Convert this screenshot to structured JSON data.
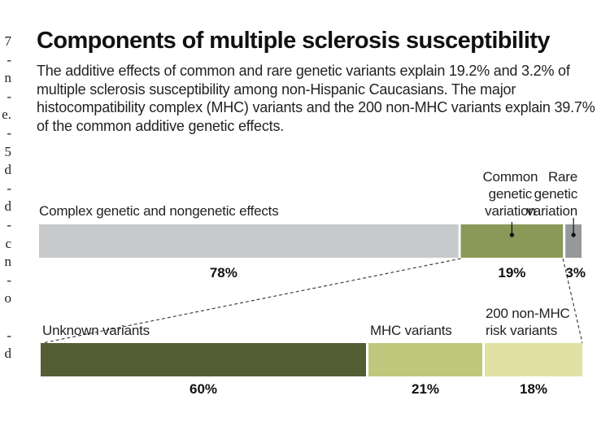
{
  "title": "Components of multiple sclerosis susceptibility",
  "subtitle": "The additive effects of common and rare genetic variants explain 19.2% and 3.2% of multiple sclerosis susceptibility among non-Hispanic Caucasians. The major histocompatibility complex (MHC) variants and the 200 non-MHC variants explain 39.7% of the common additive genetic effects.",
  "margin_fragments": [
    "7",
    "-",
    "n",
    "-",
    "e.",
    "-",
    "5",
    "d",
    "-",
    "d",
    "-",
    "c",
    "n",
    "-",
    "o",
    "",
    "-",
    "d"
  ],
  "chart_data": [
    {
      "type": "bar",
      "orientation": "horizontal",
      "stacked": true,
      "categories": [
        "Complex genetic and nongenetic effects",
        "Common genetic variation",
        "Rare genetic variation"
      ],
      "values": [
        78,
        19,
        3
      ],
      "value_labels": [
        "78%",
        "19%",
        "3%"
      ],
      "label_lines": [
        [
          "Complex genetic and nongenetic effects"
        ],
        [
          "Common",
          "genetic",
          "variation"
        ],
        [
          "Rare",
          "genetic",
          "variation"
        ]
      ],
      "colors": [
        "#c8c9cb",
        "#8a9858",
        "#97989b"
      ]
    },
    {
      "type": "bar",
      "orientation": "horizontal",
      "stacked": true,
      "breakdown_of": "Common genetic variation",
      "categories": [
        "Unknown variants",
        "MHC variants",
        "200 non-MHC risk variants"
      ],
      "values": [
        60,
        21,
        18
      ],
      "value_labels": [
        "60%",
        "21%",
        "18%"
      ],
      "label_lines": [
        [
          "Unknown variants"
        ],
        [
          "MHC variants"
        ],
        [
          "200 non-MHC",
          "risk variants"
        ]
      ],
      "colors": [
        "#545e35",
        "#bfc77c",
        "#e0e1a2"
      ]
    }
  ]
}
